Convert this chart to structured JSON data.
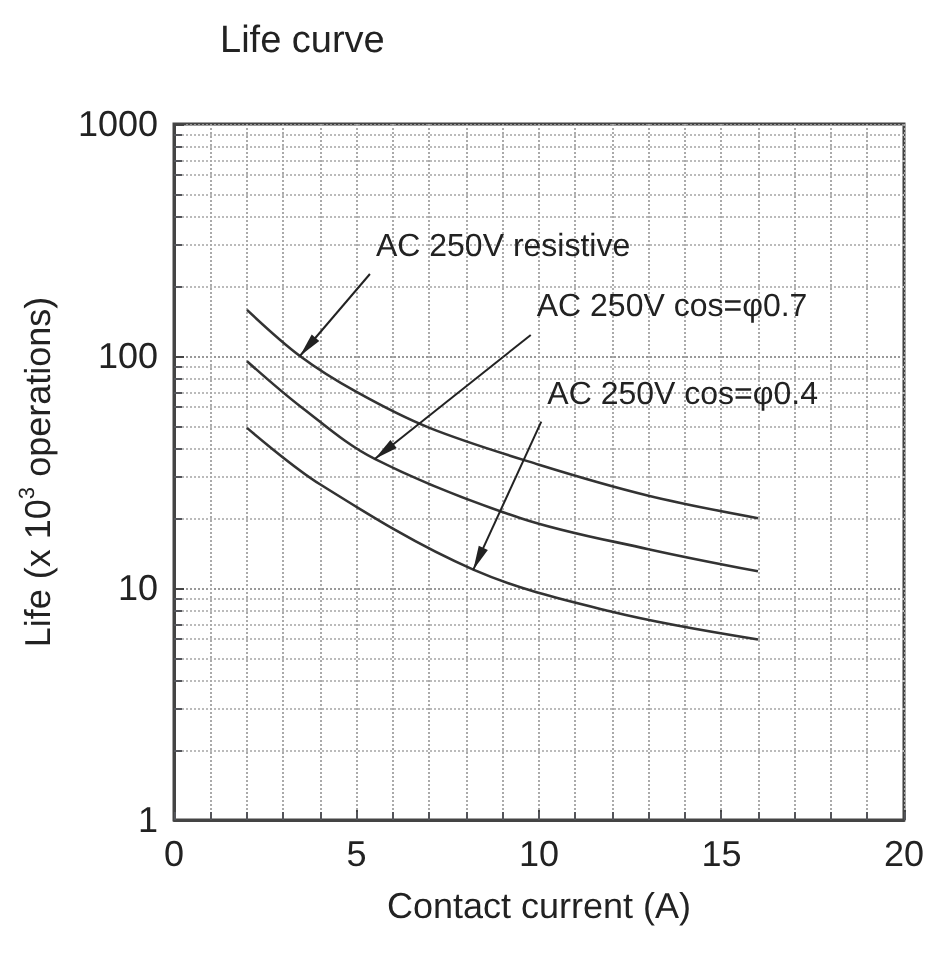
{
  "chart_data": {
    "type": "line",
    "title": "Life curve",
    "xlabel": "Contact current (A)",
    "ylabel": "Life (x 10$^{3}$ operations)",
    "xlim": [
      0,
      20
    ],
    "xticks": [
      0,
      5,
      10,
      15,
      20
    ],
    "ylim": [
      1,
      1000
    ],
    "yticks": [
      1,
      10,
      100,
      1000
    ],
    "log": "y",
    "grid": true,
    "marker": "none",
    "line_style": "solid",
    "series": [
      {
        "color": "#333333",
        "x": [
          2,
          3.45,
          5,
          7,
          10,
          13,
          16
        ],
        "values": [
          158,
          100,
          70,
          49,
          34,
          25,
          20
        ]
      },
      {
        "color": "#333333",
        "x": [
          2,
          3.5,
          5.5,
          9.5,
          13,
          16
        ],
        "values": [
          95,
          60,
          36,
          20,
          14.7,
          11.8
        ]
      },
      {
        "color": "#333333",
        "x": [
          2,
          4,
          8.2,
          12,
          16
        ],
        "values": [
          49,
          28,
          12,
          7.9,
          6
        ]
      }
    ],
    "annotations": [
      {
        "text": "AC 250V resistive",
        "x": 3.45,
        "y": 100
      },
      {
        "text": "AC 250V cos=φ0.7",
        "x": 5.5,
        "y": 36
      },
      {
        "text": "AC 250V cos=φ0.4",
        "x": 8.2,
        "y": 12
      }
    ]
  }
}
